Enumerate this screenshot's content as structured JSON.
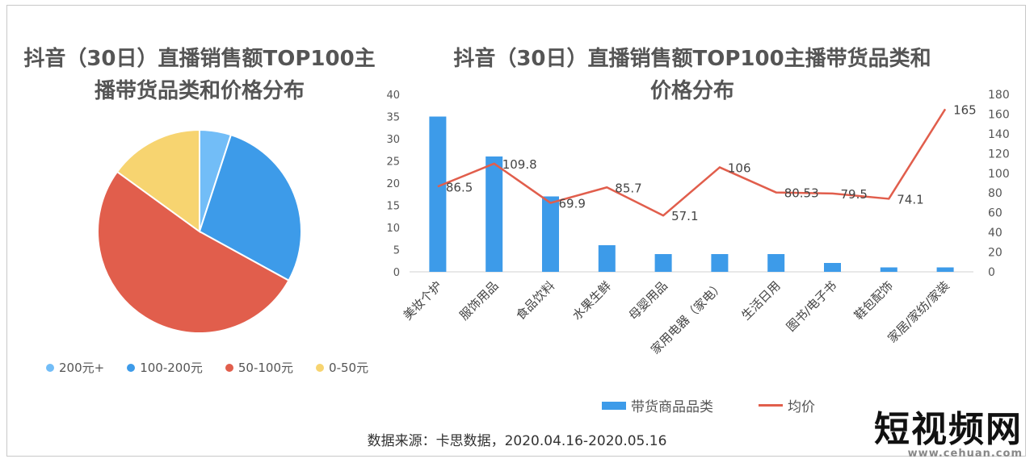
{
  "pie_title": "抖音（30日）直播销售额TOP100主播带货品类和价格分布",
  "bar_title": "抖音（30日）直播销售额TOP100主播带货品类和价格分布",
  "source": "数据来源：卡思数据，2020.04.16-2020.05.16",
  "watermark": {
    "name": "短视频网",
    "url": "www.cehuan.com"
  },
  "chart_data": [
    {
      "type": "pie",
      "title": "抖音（30日）直播销售额TOP100主播带货品类和价格分布",
      "labels": [
        "200元+",
        "100-200元",
        "50-100元",
        "0-50元"
      ],
      "values": [
        5,
        28,
        52,
        15
      ],
      "colors": [
        "#72bdf7",
        "#3d9be9",
        "#e15e4c",
        "#f7d470"
      ],
      "legend": "bottom"
    },
    {
      "type": "bar",
      "title": "抖音（30日）直播销售额TOP100主播带货品类和价格分布",
      "categories": [
        "美妆个护",
        "服饰用品",
        "食品饮料",
        "水果生鲜",
        "母婴用品",
        "家用电器（家电）",
        "生活日用",
        "图书/电子书",
        "鞋包配饰",
        "家居/家纺/家装"
      ],
      "series": [
        {
          "name": "带货商品品类",
          "type": "bar",
          "axis": "left",
          "color": "#3d9be9",
          "values": [
            35,
            26,
            17,
            6,
            4,
            4,
            4,
            2,
            1,
            1
          ]
        },
        {
          "name": "均价",
          "type": "line",
          "axis": "right",
          "color": "#e15e4c",
          "values": [
            86.5,
            109.8,
            69.9,
            85.7,
            57.1,
            106,
            80.53,
            79.5,
            74.1,
            165
          ],
          "labels": [
            "86.5",
            "109.8",
            "69.9",
            "85.7",
            "57.1",
            "106",
            "80.53",
            "79.5",
            "74.1",
            "165"
          ]
        }
      ],
      "y_left": {
        "min": 0,
        "max": 40,
        "step": 5
      },
      "y_right": {
        "min": 0,
        "max": 180,
        "step": 20
      },
      "grid": false,
      "legend": "bottom"
    }
  ]
}
